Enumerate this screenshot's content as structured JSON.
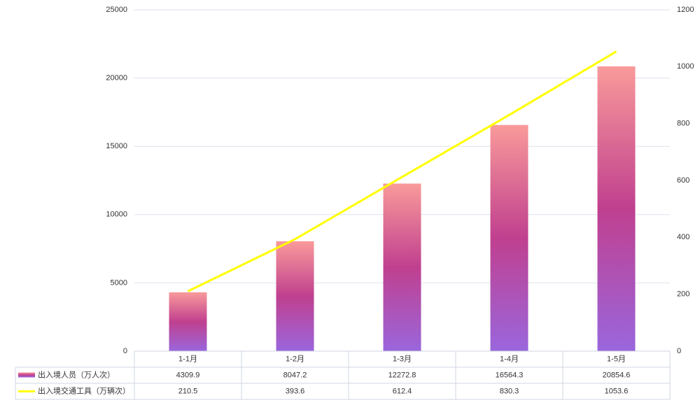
{
  "chart_data": {
    "type": "bar",
    "categories": [
      "1-1月",
      "1-2月",
      "1-3月",
      "1-4月",
      "1-5月"
    ],
    "series": [
      {
        "name": "出入境人员（万人次）",
        "type": "bar",
        "color": [
          "#f99a9a",
          "#c0408f",
          "#9a66dd"
        ],
        "values": [
          4309.9,
          8047.2,
          12272.8,
          16564.3,
          20854.6
        ]
      },
      {
        "name": "出入境交通工具（万辆次）",
        "type": "line",
        "axis": "y2",
        "color": "#ffff00",
        "values": [
          210.5,
          393.6,
          612.4,
          830.3,
          1053.6
        ]
      }
    ],
    "ylim": [
      0,
      25000
    ],
    "yticks": [
      0,
      5000,
      10000,
      15000,
      20000,
      25000
    ],
    "y2lim": [
      0,
      1200
    ],
    "y2ticks": [
      0,
      200,
      400,
      600,
      800,
      1000,
      1200
    ],
    "grid": true
  }
}
